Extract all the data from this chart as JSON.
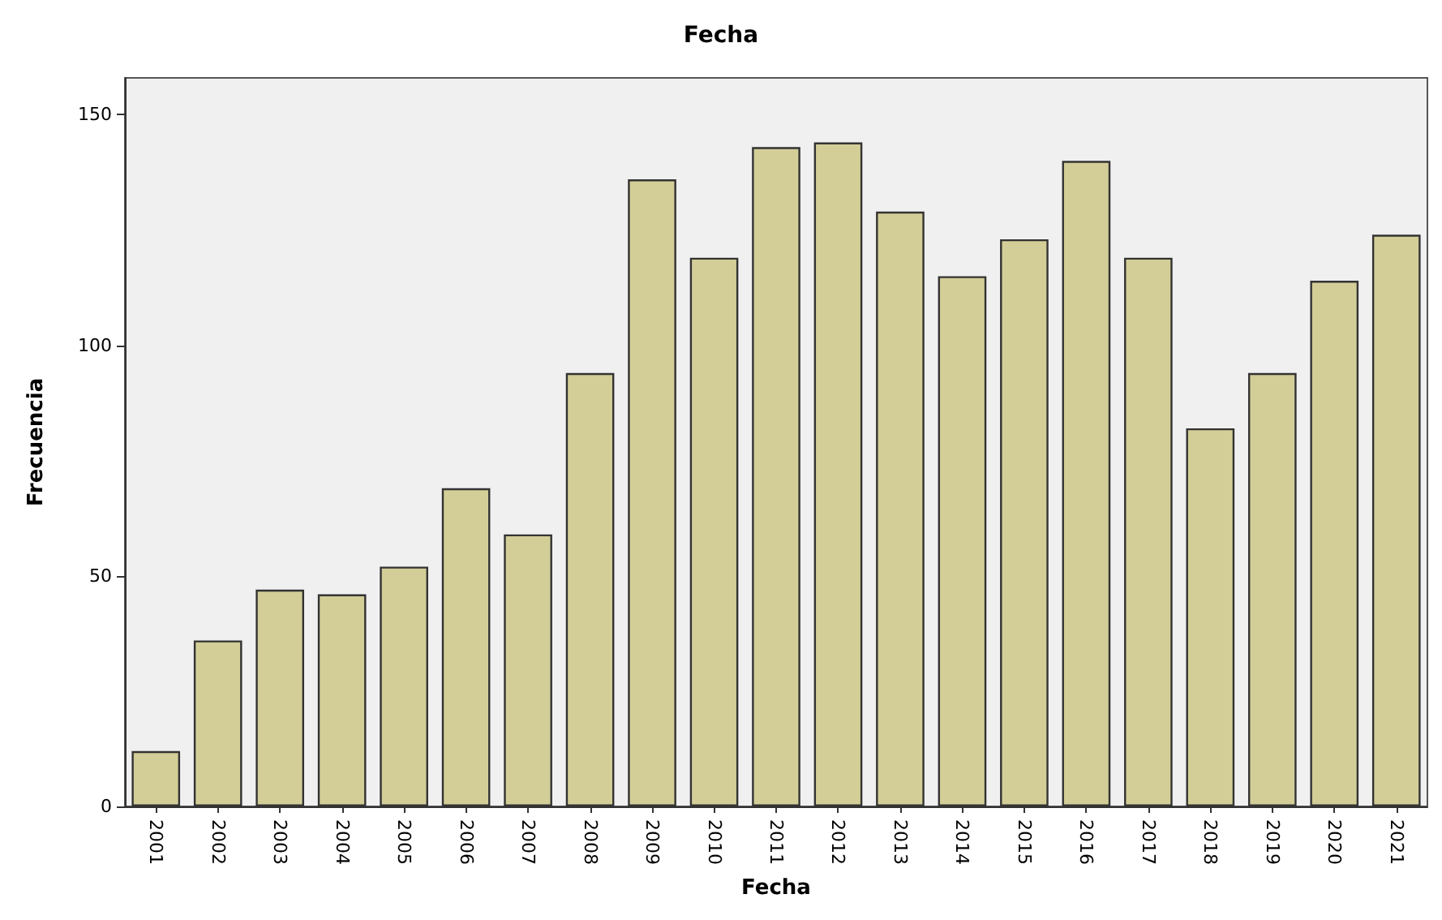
{
  "chart_data": {
    "type": "bar",
    "title": "Fecha",
    "xlabel": "Fecha",
    "ylabel": "Frecuencia",
    "categories": [
      "2001",
      "2002",
      "2003",
      "2004",
      "2005",
      "2006",
      "2007",
      "2008",
      "2009",
      "2010",
      "2011",
      "2012",
      "2013",
      "2014",
      "2015",
      "2016",
      "2017",
      "2018",
      "2019",
      "2020",
      "2021"
    ],
    "values": [
      12,
      36,
      47,
      46,
      52,
      69,
      59,
      94,
      136,
      119,
      143,
      144,
      129,
      115,
      123,
      140,
      119,
      82,
      94,
      114,
      124
    ],
    "color": "#d3ce97",
    "ylim": [
      0,
      158
    ],
    "yticks": [
      0,
      50,
      100,
      150
    ],
    "grid": false
  }
}
